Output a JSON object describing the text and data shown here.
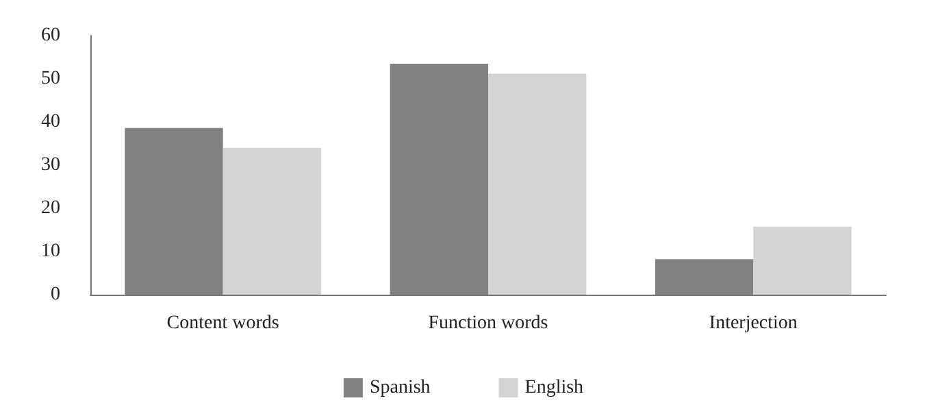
{
  "chart_data": {
    "type": "bar",
    "categories": [
      "Content words",
      "Function words",
      "Interjection"
    ],
    "series": [
      {
        "name": "Spanish",
        "color": "#808183",
        "values": [
          38.6,
          53.5,
          8.2
        ]
      },
      {
        "name": "English",
        "color": "#d2d3d5",
        "values": [
          34.0,
          51.2,
          15.7
        ]
      }
    ],
    "ylim": [
      0,
      60
    ],
    "yticks": [
      0,
      10,
      20,
      30,
      40,
      50,
      60
    ],
    "grid": false,
    "legend": "bottom"
  }
}
